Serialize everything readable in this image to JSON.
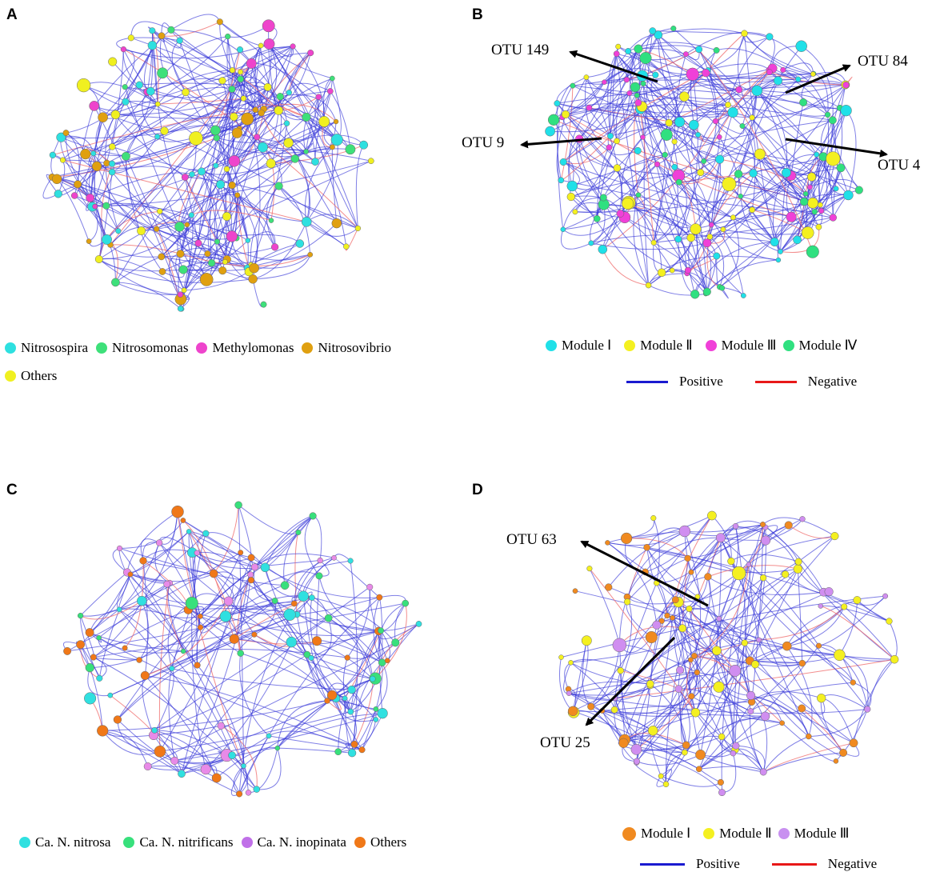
{
  "panels": [
    {
      "letter": "A",
      "legend": [
        {
          "label": "Nitrosospira",
          "color": "#2ee0e0"
        },
        {
          "label": "Nitrosomonas",
          "color": "#3ee07a"
        },
        {
          "label": "Methylomonas",
          "color": "#ee44cc"
        },
        {
          "label": "Nitrosovibrio",
          "color": "#e0a010"
        },
        {
          "label": "Others",
          "color": "#f0f020"
        }
      ]
    },
    {
      "letter": "B",
      "legend": [
        {
          "label": "Module Ⅰ",
          "color": "#20e0e8"
        },
        {
          "label": "Module Ⅱ",
          "color": "#f4f020"
        },
        {
          "label": "Module Ⅲ",
          "color": "#f040d8"
        },
        {
          "label": "Module Ⅳ",
          "color": "#30e080"
        }
      ],
      "edges": [
        {
          "label": "Positive",
          "color": "#1a1ad0"
        },
        {
          "label": "Negative",
          "color": "#e81818"
        }
      ],
      "otus": [
        "OTU 149",
        "OTU 84",
        "OTU 9",
        "OTU 4"
      ]
    },
    {
      "letter": "C",
      "legend": [
        {
          "label": "Ca. N. nitrosa",
          "color": "#30e0e0"
        },
        {
          "label": "Ca. N. nitrificans",
          "color": "#38e07c"
        },
        {
          "label": "Ca. N. inopinata",
          "color": "#c070e8"
        },
        {
          "label": "Others",
          "color": "#f07818"
        }
      ]
    },
    {
      "letter": "D",
      "legend": [
        {
          "label": "Module Ⅰ",
          "color": "#f08a20"
        },
        {
          "label": "Module Ⅱ",
          "color": "#f4f020"
        },
        {
          "label": "Module Ⅲ",
          "color": "#c890f0"
        }
      ],
      "edges": [
        {
          "label": "Positive",
          "color": "#1a1ad0"
        },
        {
          "label": "Negative",
          "color": "#e81818"
        }
      ],
      "otus": [
        "OTU 63",
        "OTU 25"
      ]
    }
  ],
  "palettes": {
    "A": [
      "#2ee0e0",
      "#3ee07a",
      "#ee44cc",
      "#e0a010",
      "#f0f020"
    ],
    "B": [
      "#20e0e8",
      "#f4f020",
      "#f040d8",
      "#30e080"
    ],
    "C": [
      "#30e0e0",
      "#38e07c",
      "#e88ae8",
      "#f07818"
    ],
    "D": [
      "#f08a20",
      "#f4f020",
      "#d08ef0"
    ]
  },
  "edge_colors": {
    "positive": "#3a3ad8",
    "negative": "#f07070"
  }
}
